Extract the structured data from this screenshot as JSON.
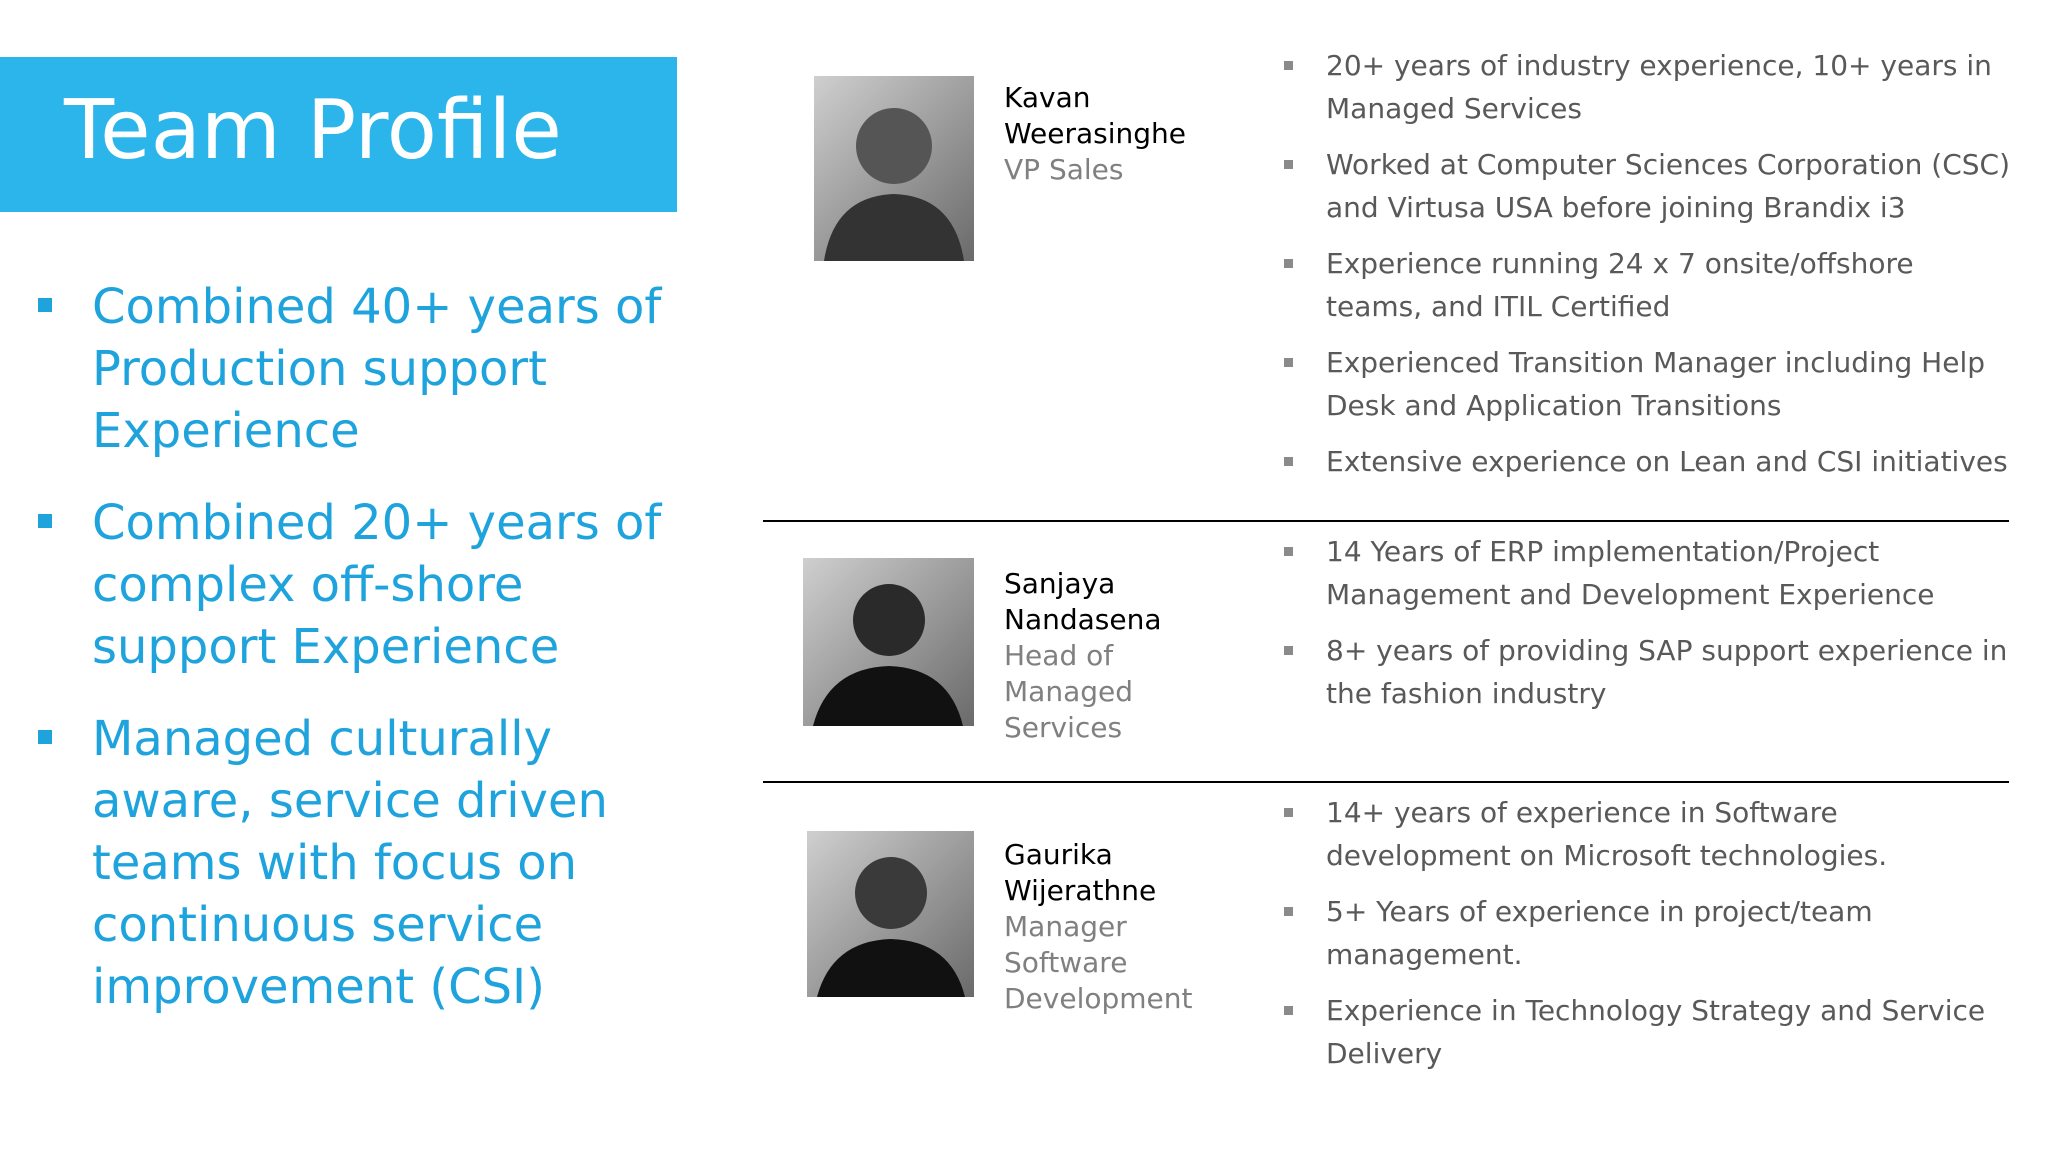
{
  "header": {
    "title": "Team Profile"
  },
  "highlights": [
    "Combined 40+ years of Production support Experience",
    "Combined 20+ years of complex off-shore support Experience",
    "Managed culturally aware, service driven teams with focus on continuous service improvement (CSI)"
  ],
  "members": [
    {
      "name": "Kavan Weerasinghe",
      "role": "VP Sales",
      "points": [
        "20+ years of industry experience, 10+ years in Managed Services",
        "Worked at Computer Sciences Corporation (CSC) and Virtusa USA before joining Brandix i3",
        "Experience running 24 x 7 onsite/offshore teams, and ITIL Certified",
        "Experienced Transition Manager including Help Desk and Application Transitions",
        "Extensive experience on Lean and CSI initiatives"
      ]
    },
    {
      "name": "Sanjaya Nandasena",
      "role": "Head of Managed Services",
      "points": [
        "14 Years of ERP implementation/Project Management and Development Experience",
        "8+ years of providing SAP support experience in the fashion industry"
      ]
    },
    {
      "name": "Gaurika Wijerathne",
      "role": "Manager Software Development",
      "points": [
        "14+  years of  experience in Software development on Microsoft technologies.",
        "5+ Years of experience in  project/team management.",
        "Experience in Technology Strategy and Service Delivery"
      ]
    }
  ]
}
